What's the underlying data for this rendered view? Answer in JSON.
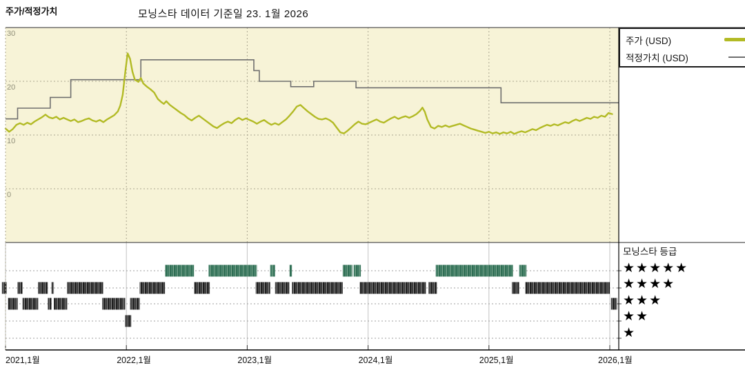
{
  "header": {
    "panel_label": "주가/적정가치",
    "title": "모닝스타 데이터 기준일 23. 1월 2026"
  },
  "legend": {
    "price_label": "주가 (USD)",
    "fair_label": "적정가치 (USD)"
  },
  "rating_legend": {
    "title": "모닝스타 등급",
    "star": "★",
    "rows": [
      5,
      4,
      3,
      2,
      1
    ]
  },
  "axis": {
    "yticks": [
      30,
      20,
      10,
      0
    ],
    "x_labels": [
      "2021,1월",
      "2022,1월",
      "2023,1월",
      "2024,1월",
      "2025,1월",
      "2026,1월"
    ]
  },
  "colors": {
    "price": "#b2ba24",
    "fair": "#6e6e6e",
    "chart_bg": "#f7f3d7",
    "grid": "#aaa58f",
    "strip_grid": "#9c9c9c",
    "strip_year_line": "#c2c2c2",
    "border_dark": "#555555",
    "border_black": "#000000",
    "rating_green_a": "#2f6e54",
    "rating_green_b": "#5d927b",
    "rating_dark_a": "#1f1f1f",
    "rating_dark_b": "#6a6a6a",
    "ytick_text": "#8f8e79"
  },
  "chart_data": {
    "type": "line",
    "title": "모닝스타 데이터 기준일 23. 1월 2026",
    "x_unit": "years_since_2021_01",
    "x_range": [
      0,
      5.07
    ],
    "ylim": [
      -10,
      30
    ],
    "yticks": [
      30,
      20,
      10,
      0
    ],
    "x_tick_years": [
      "2021,1월",
      "2022,1월",
      "2023,1월",
      "2024,1월",
      "2025,1월",
      "2026,1월"
    ],
    "legend_position": "top-right",
    "series": [
      {
        "name": "주가 (USD)",
        "kind": "line",
        "points": [
          [
            0.0,
            11.2
          ],
          [
            0.03,
            10.6
          ],
          [
            0.06,
            11.1
          ],
          [
            0.09,
            11.9
          ],
          [
            0.12,
            12.2
          ],
          [
            0.15,
            11.9
          ],
          [
            0.18,
            12.3
          ],
          [
            0.21,
            12.0
          ],
          [
            0.24,
            12.5
          ],
          [
            0.27,
            12.9
          ],
          [
            0.3,
            13.3
          ],
          [
            0.33,
            13.8
          ],
          [
            0.36,
            13.3
          ],
          [
            0.39,
            13.1
          ],
          [
            0.42,
            13.4
          ],
          [
            0.45,
            12.9
          ],
          [
            0.48,
            13.2
          ],
          [
            0.51,
            12.9
          ],
          [
            0.54,
            12.6
          ],
          [
            0.57,
            12.9
          ],
          [
            0.6,
            12.4
          ],
          [
            0.63,
            12.6
          ],
          [
            0.66,
            12.9
          ],
          [
            0.69,
            13.1
          ],
          [
            0.72,
            12.7
          ],
          [
            0.75,
            12.5
          ],
          [
            0.78,
            12.8
          ],
          [
            0.81,
            12.4
          ],
          [
            0.84,
            12.9
          ],
          [
            0.87,
            13.3
          ],
          [
            0.9,
            13.7
          ],
          [
            0.93,
            14.4
          ],
          [
            0.95,
            15.5
          ],
          [
            0.97,
            17.5
          ],
          [
            0.99,
            21.5
          ],
          [
            1.01,
            25.2
          ],
          [
            1.03,
            24.2
          ],
          [
            1.05,
            21.8
          ],
          [
            1.07,
            20.3
          ],
          [
            1.1,
            19.9
          ],
          [
            1.12,
            20.6
          ],
          [
            1.14,
            19.6
          ],
          [
            1.17,
            19.0
          ],
          [
            1.2,
            18.5
          ],
          [
            1.23,
            17.9
          ],
          [
            1.26,
            16.7
          ],
          [
            1.29,
            16.1
          ],
          [
            1.31,
            15.8
          ],
          [
            1.33,
            16.3
          ],
          [
            1.36,
            15.6
          ],
          [
            1.39,
            15.1
          ],
          [
            1.42,
            14.6
          ],
          [
            1.45,
            14.1
          ],
          [
            1.48,
            13.7
          ],
          [
            1.51,
            13.1
          ],
          [
            1.54,
            12.7
          ],
          [
            1.57,
            13.2
          ],
          [
            1.6,
            13.6
          ],
          [
            1.63,
            13.1
          ],
          [
            1.66,
            12.6
          ],
          [
            1.69,
            12.1
          ],
          [
            1.72,
            11.6
          ],
          [
            1.75,
            11.3
          ],
          [
            1.78,
            11.8
          ],
          [
            1.81,
            12.2
          ],
          [
            1.84,
            12.5
          ],
          [
            1.87,
            12.2
          ],
          [
            1.9,
            12.8
          ],
          [
            1.93,
            13.2
          ],
          [
            1.96,
            12.8
          ],
          [
            1.99,
            13.1
          ],
          [
            2.02,
            12.8
          ],
          [
            2.05,
            12.5
          ],
          [
            2.08,
            12.1
          ],
          [
            2.11,
            12.5
          ],
          [
            2.14,
            12.8
          ],
          [
            2.17,
            12.3
          ],
          [
            2.2,
            11.9
          ],
          [
            2.23,
            12.2
          ],
          [
            2.26,
            11.9
          ],
          [
            2.29,
            12.4
          ],
          [
            2.32,
            12.9
          ],
          [
            2.35,
            13.6
          ],
          [
            2.38,
            14.4
          ],
          [
            2.41,
            15.3
          ],
          [
            2.44,
            15.6
          ],
          [
            2.47,
            15.0
          ],
          [
            2.5,
            14.4
          ],
          [
            2.53,
            13.9
          ],
          [
            2.56,
            13.4
          ],
          [
            2.59,
            13.0
          ],
          [
            2.62,
            12.9
          ],
          [
            2.65,
            13.1
          ],
          [
            2.68,
            12.8
          ],
          [
            2.71,
            12.3
          ],
          [
            2.74,
            11.4
          ],
          [
            2.77,
            10.5
          ],
          [
            2.8,
            10.3
          ],
          [
            2.83,
            10.8
          ],
          [
            2.86,
            11.4
          ],
          [
            2.89,
            12.0
          ],
          [
            2.92,
            12.5
          ],
          [
            2.95,
            12.1
          ],
          [
            2.98,
            12.0
          ],
          [
            3.01,
            12.3
          ],
          [
            3.04,
            12.6
          ],
          [
            3.07,
            12.9
          ],
          [
            3.1,
            12.5
          ],
          [
            3.13,
            12.3
          ],
          [
            3.16,
            12.7
          ],
          [
            3.19,
            13.1
          ],
          [
            3.22,
            13.4
          ],
          [
            3.25,
            13.0
          ],
          [
            3.28,
            13.3
          ],
          [
            3.31,
            13.5
          ],
          [
            3.34,
            13.2
          ],
          [
            3.37,
            13.5
          ],
          [
            3.4,
            13.9
          ],
          [
            3.43,
            14.5
          ],
          [
            3.45,
            15.1
          ],
          [
            3.47,
            14.3
          ],
          [
            3.49,
            12.9
          ],
          [
            3.52,
            11.5
          ],
          [
            3.55,
            11.2
          ],
          [
            3.58,
            11.7
          ],
          [
            3.61,
            11.5
          ],
          [
            3.64,
            11.8
          ],
          [
            3.67,
            11.5
          ],
          [
            3.7,
            11.7
          ],
          [
            3.73,
            11.9
          ],
          [
            3.76,
            12.1
          ],
          [
            3.79,
            11.8
          ],
          [
            3.82,
            11.5
          ],
          [
            3.85,
            11.2
          ],
          [
            3.88,
            11.0
          ],
          [
            3.91,
            10.8
          ],
          [
            3.94,
            10.6
          ],
          [
            3.97,
            10.4
          ],
          [
            4.0,
            10.6
          ],
          [
            4.03,
            10.3
          ],
          [
            4.06,
            10.5
          ],
          [
            4.09,
            10.2
          ],
          [
            4.12,
            10.5
          ],
          [
            4.15,
            10.3
          ],
          [
            4.18,
            10.6
          ],
          [
            4.21,
            10.2
          ],
          [
            4.24,
            10.5
          ],
          [
            4.27,
            10.7
          ],
          [
            4.3,
            10.5
          ],
          [
            4.33,
            10.8
          ],
          [
            4.36,
            11.1
          ],
          [
            4.39,
            10.9
          ],
          [
            4.42,
            11.3
          ],
          [
            4.45,
            11.6
          ],
          [
            4.48,
            11.9
          ],
          [
            4.51,
            11.7
          ],
          [
            4.54,
            12.0
          ],
          [
            4.57,
            11.8
          ],
          [
            4.6,
            12.1
          ],
          [
            4.63,
            12.4
          ],
          [
            4.66,
            12.2
          ],
          [
            4.69,
            12.6
          ],
          [
            4.72,
            12.9
          ],
          [
            4.75,
            12.6
          ],
          [
            4.78,
            12.9
          ],
          [
            4.81,
            13.2
          ],
          [
            4.84,
            13.0
          ],
          [
            4.87,
            13.4
          ],
          [
            4.9,
            13.2
          ],
          [
            4.93,
            13.6
          ],
          [
            4.96,
            13.4
          ],
          [
            4.99,
            14.1
          ],
          [
            5.02,
            13.9
          ]
        ]
      },
      {
        "name": "적정가치 (USD)",
        "kind": "step",
        "points": [
          [
            0.0,
            13.0
          ],
          [
            0.1,
            15.0
          ],
          [
            0.37,
            17.0
          ],
          [
            0.54,
            20.3
          ],
          [
            1.12,
            24.0
          ],
          [
            2.055,
            22.0
          ],
          [
            2.1,
            20.0
          ],
          [
            2.36,
            19.0
          ],
          [
            2.55,
            20.0
          ],
          [
            2.9,
            18.8
          ],
          [
            4.1,
            16.0
          ]
        ],
        "end_t": 5.07
      }
    ],
    "ratings": {
      "rows": [
        5,
        4,
        3,
        2,
        1
      ],
      "segments": [
        [
          5,
          1.32,
          1.56
        ],
        [
          5,
          1.68,
          2.08
        ],
        [
          5,
          2.19,
          2.23
        ],
        [
          5,
          2.35,
          2.37
        ],
        [
          5,
          2.79,
          2.87
        ],
        [
          5,
          2.88,
          2.94
        ],
        [
          5,
          3.56,
          4.2
        ],
        [
          5,
          4.25,
          4.31
        ],
        [
          4,
          -0.03,
          0.01
        ],
        [
          4,
          0.1,
          0.14
        ],
        [
          4,
          0.27,
          0.35
        ],
        [
          4,
          0.38,
          0.4
        ],
        [
          4,
          0.51,
          0.81
        ],
        [
          4,
          1.11,
          1.32
        ],
        [
          4,
          1.56,
          1.69
        ],
        [
          4,
          2.07,
          2.19
        ],
        [
          4,
          2.23,
          2.35
        ],
        [
          4,
          2.37,
          2.79
        ],
        [
          4,
          2.93,
          3.48
        ],
        [
          4,
          3.5,
          3.57
        ],
        [
          4,
          4.19,
          4.25
        ],
        [
          4,
          4.3,
          5.0
        ],
        [
          3,
          0.02,
          0.1
        ],
        [
          3,
          0.14,
          0.27
        ],
        [
          3,
          0.35,
          0.38
        ],
        [
          3,
          0.4,
          0.51
        ],
        [
          3,
          0.8,
          0.99
        ],
        [
          3,
          1.03,
          1.11
        ],
        [
          3,
          5.01,
          5.06
        ],
        [
          2,
          0.99,
          1.04
        ]
      ]
    }
  }
}
